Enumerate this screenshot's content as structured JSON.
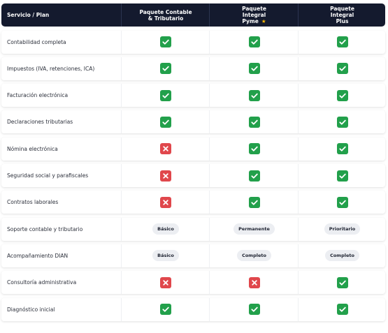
{
  "table": {
    "header": [
      "Servicio / Plan",
      "Paquete Contable & Tributario",
      "Paquete Integral Pyme",
      "Paquete Integral Plus"
    ],
    "rows": [
      [
        "Contabilidad completa",
        true,
        true,
        true
      ],
      [
        "Impuestos (IVA, retenciones, ICA)",
        true,
        true,
        true
      ],
      [
        "Facturación electrónica",
        true,
        true,
        true
      ],
      [
        "Declaraciones tributarias",
        true,
        true,
        true
      ],
      [
        "Nómina electrónica",
        false,
        true,
        true
      ],
      [
        "Seguridad social y parafiscales",
        false,
        true,
        true
      ],
      [
        "Contratos laborales",
        false,
        true,
        true
      ],
      [
        "Soporte contable y tributario",
        "Básico",
        "Permanente",
        "Prioritario"
      ],
      [
        "Acompañamiento DIAN",
        "Básico",
        "Completo",
        "Completo"
      ],
      [
        "Consultoría administrativa",
        false,
        false,
        true
      ],
      [
        "Diagnóstico inicial",
        true,
        true,
        true
      ]
    ]
  }
}
